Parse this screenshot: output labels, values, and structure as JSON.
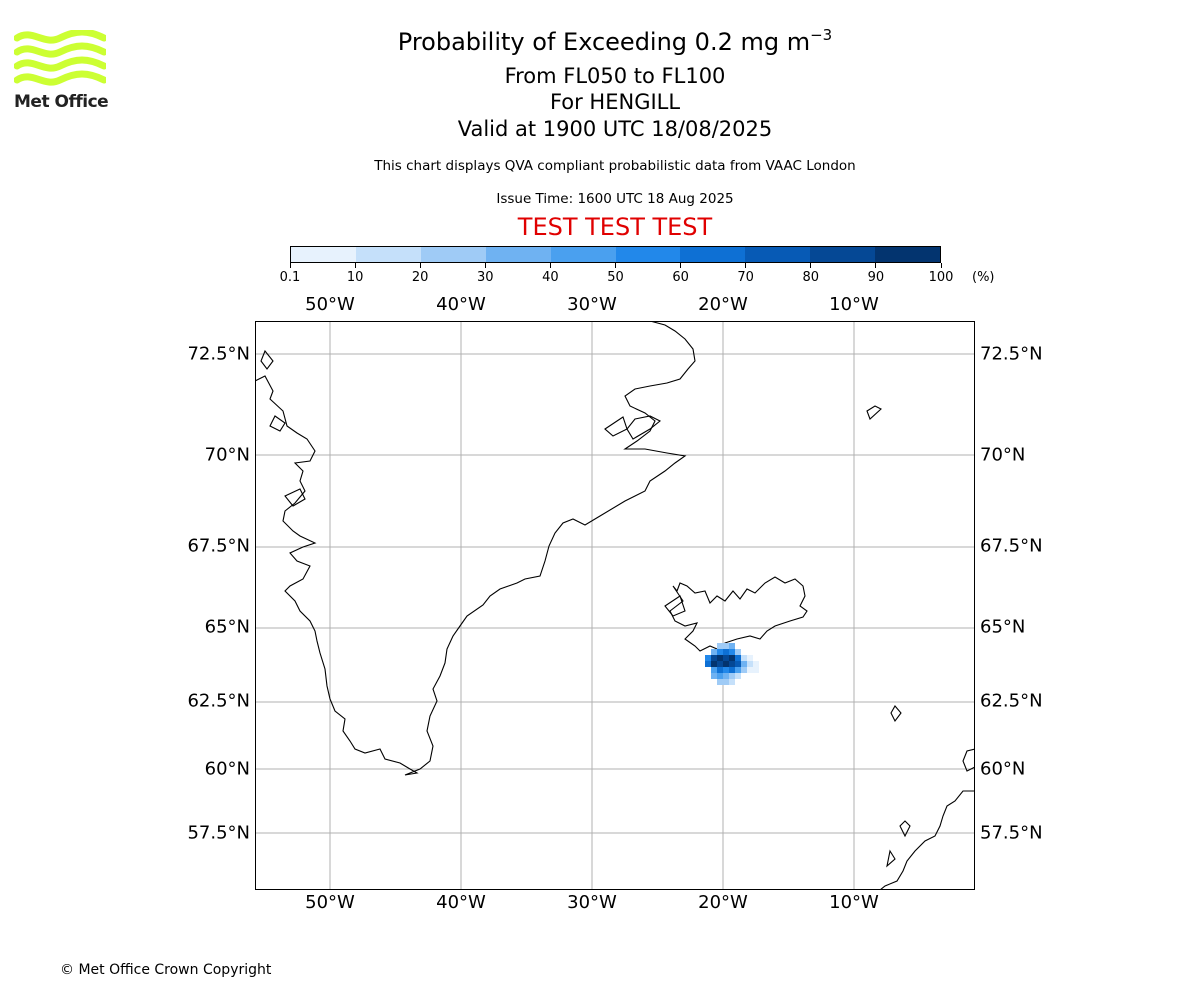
{
  "header": {
    "title_main": "Probability of Exceeding 0.2 mg m",
    "title_exp": "−3",
    "line2": "From FL050 to FL100",
    "line3": "For HENGILL",
    "line4": "Valid at 1900 UTC 18/08/2025",
    "subtitle": "This chart displays QVA compliant probabilistic data from VAAC London",
    "issue_time": "Issue Time: 1600 UTC 18 Aug 2025",
    "test_banner": "TEST TEST TEST"
  },
  "logo": {
    "text": "Met Office",
    "color": "#ccff33"
  },
  "colorbar": {
    "ticks": [
      "0.1",
      "10",
      "20",
      "30",
      "40",
      "50",
      "60",
      "70",
      "80",
      "90",
      "100"
    ],
    "unit": "(%)",
    "colors": [
      "#e7f2fd",
      "#c5e0fa",
      "#9fcbf6",
      "#6fb2f2",
      "#4aa0ef",
      "#2288ea",
      "#0e70d4",
      "#075ab5",
      "#054895",
      "#03346f"
    ]
  },
  "axes": {
    "lon_labels": [
      "50°W",
      "40°W",
      "30°W",
      "20°W",
      "10°W"
    ],
    "lat_labels": [
      "72.5°N",
      "70°N",
      "67.5°N",
      "65°N",
      "62.5°N",
      "60°N",
      "57.5°N"
    ]
  },
  "footer": {
    "copyright": "© Met Office Crown Copyright"
  }
}
